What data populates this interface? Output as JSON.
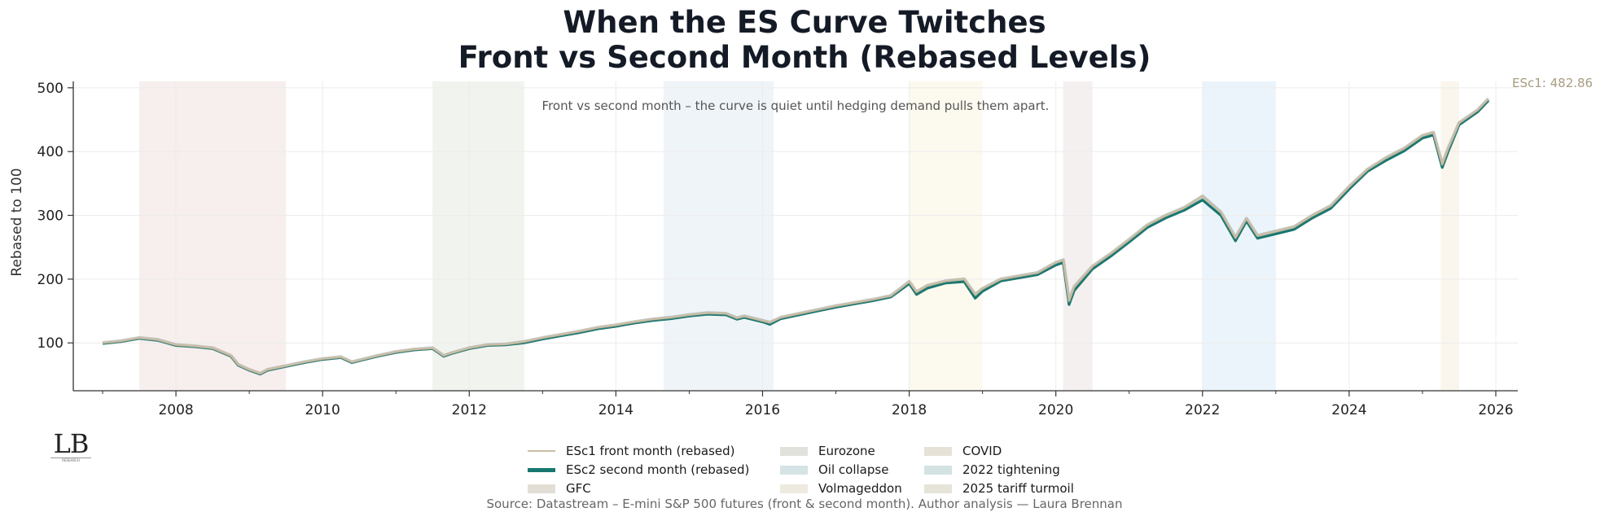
{
  "title": {
    "line1": "When the ES Curve Twitches",
    "line2": "Front vs Second Month (Rebased Levels)"
  },
  "annotation": "Front vs second month – the curve is quiet until hedging demand pulls them apart.",
  "end_label": "ESc1: 482.86",
  "source": "Source: Datastream – E-mini S&P 500 futures (front & second month). Author analysis — Laura Brennan",
  "logo": {
    "mark": "LB",
    "sub": "RESEARCH"
  },
  "colors": {
    "front": "#c9bea4",
    "second": "#17776f",
    "end_label": "#a89c80",
    "axis": "#333333",
    "grid": "#ececec"
  },
  "legend": {
    "lines": [
      {
        "key": "front",
        "label": "ESc1 front month (rebased)"
      },
      {
        "key": "second",
        "label": "ESc2 second month (rebased)"
      }
    ],
    "bands": [
      {
        "label": "GFC",
        "color": "#e3ded5"
      },
      {
        "label": "Eurozone",
        "color": "#e2e2dc"
      },
      {
        "label": "Oil collapse",
        "color": "#d6e3e5"
      },
      {
        "label": "Volmageddon",
        "color": "#eeeae0"
      },
      {
        "label": "COVID",
        "color": "#e6e2d8"
      },
      {
        "label": "2022 tightening",
        "color": "#d3e2e3"
      },
      {
        "label": "2025 tariff turmoil",
        "color": "#e6e3d8"
      }
    ]
  },
  "chart_data": {
    "type": "line",
    "title": "When the ES Curve Twitches — Front vs Second Month (Rebased Levels)",
    "xlabel": "",
    "ylabel": "Rebased to 100",
    "xlim": [
      2006.6,
      2026.3
    ],
    "ylim": [
      25,
      510
    ],
    "x_ticks": [
      2008,
      2010,
      2012,
      2014,
      2016,
      2018,
      2020,
      2022,
      2024,
      2026
    ],
    "y_ticks": [
      100,
      200,
      300,
      400,
      500
    ],
    "grid": true,
    "legend_position": "bottom-center",
    "shaded_regions": [
      {
        "label": "GFC",
        "start": 2007.5,
        "end": 2009.5,
        "color": "#f7eeee"
      },
      {
        "label": "Eurozone",
        "start": 2011.5,
        "end": 2012.75,
        "color": "#f1f4ee"
      },
      {
        "label": "Oil collapse",
        "start": 2014.65,
        "end": 2016.15,
        "color": "#eff4f8"
      },
      {
        "label": "Volmageddon",
        "start": 2018.0,
        "end": 2019.0,
        "color": "#fcf9ee"
      },
      {
        "label": "COVID",
        "start": 2020.1,
        "end": 2020.5,
        "color": "#f5f0f0"
      },
      {
        "label": "2022 tightening",
        "start": 2022.0,
        "end": 2023.0,
        "color": "#ebf4fa"
      },
      {
        "label": "2025 tariff turmoil",
        "start": 2025.25,
        "end": 2025.5,
        "color": "#faf6ee"
      }
    ],
    "x": [
      2007.0,
      2007.25,
      2007.5,
      2007.75,
      2008.0,
      2008.25,
      2008.5,
      2008.75,
      2008.85,
      2009.0,
      2009.15,
      2009.25,
      2009.5,
      2009.75,
      2010.0,
      2010.25,
      2010.4,
      2010.5,
      2010.75,
      2011.0,
      2011.25,
      2011.5,
      2011.65,
      2011.75,
      2012.0,
      2012.25,
      2012.5,
      2012.75,
      2013.0,
      2013.25,
      2013.5,
      2013.75,
      2014.0,
      2014.25,
      2014.5,
      2014.75,
      2015.0,
      2015.25,
      2015.5,
      2015.65,
      2015.75,
      2016.0,
      2016.1,
      2016.25,
      2016.5,
      2016.75,
      2017.0,
      2017.25,
      2017.5,
      2017.75,
      2018.0,
      2018.1,
      2018.25,
      2018.5,
      2018.75,
      2018.9,
      2019.0,
      2019.25,
      2019.5,
      2019.75,
      2020.0,
      2020.1,
      2020.18,
      2020.25,
      2020.5,
      2020.75,
      2021.0,
      2021.25,
      2021.5,
      2021.75,
      2022.0,
      2022.25,
      2022.45,
      2022.6,
      2022.75,
      2023.0,
      2023.25,
      2023.5,
      2023.75,
      2024.0,
      2024.25,
      2024.5,
      2024.75,
      2025.0,
      2025.15,
      2025.27,
      2025.35,
      2025.5,
      2025.75,
      2025.9
    ],
    "series": [
      {
        "name": "ESc1 front month (rebased)",
        "values": [
          100,
          103,
          108,
          105,
          97,
          95,
          92,
          80,
          66,
          58,
          52,
          58,
          64,
          70,
          75,
          78,
          70,
          73,
          80,
          86,
          90,
          92,
          80,
          84,
          92,
          97,
          98,
          102,
          108,
          113,
          118,
          124,
          128,
          133,
          137,
          140,
          144,
          147,
          146,
          139,
          142,
          135,
          132,
          140,
          146,
          152,
          158,
          163,
          168,
          174,
          196,
          180,
          190,
          197,
          200,
          176,
          185,
          200,
          205,
          210,
          226,
          230,
          166,
          188,
          220,
          240,
          262,
          285,
          300,
          312,
          330,
          305,
          265,
          295,
          268,
          275,
          282,
          300,
          315,
          345,
          372,
          390,
          405,
          425,
          430,
          380,
          405,
          445,
          465,
          482.86
        ]
      },
      {
        "name": "ESc2 second month (rebased)",
        "values": [
          99,
          102,
          107,
          104,
          96,
          94,
          91,
          79,
          65,
          57,
          51,
          57,
          63,
          69,
          74,
          77,
          69,
          72,
          79,
          85,
          89,
          91,
          79,
          83,
          91,
          96,
          97,
          100,
          106,
          111,
          116,
          122,
          126,
          131,
          135,
          138,
          142,
          145,
          144,
          137,
          140,
          133,
          129,
          138,
          144,
          150,
          156,
          161,
          166,
          172,
          193,
          176,
          186,
          194,
          196,
          170,
          181,
          197,
          202,
          207,
          222,
          226,
          160,
          182,
          216,
          236,
          258,
          281,
          296,
          308,
          324,
          300,
          260,
          291,
          264,
          271,
          278,
          296,
          311,
          341,
          369,
          386,
          401,
          421,
          426,
          375,
          400,
          442,
          462,
          480
        ]
      }
    ]
  }
}
